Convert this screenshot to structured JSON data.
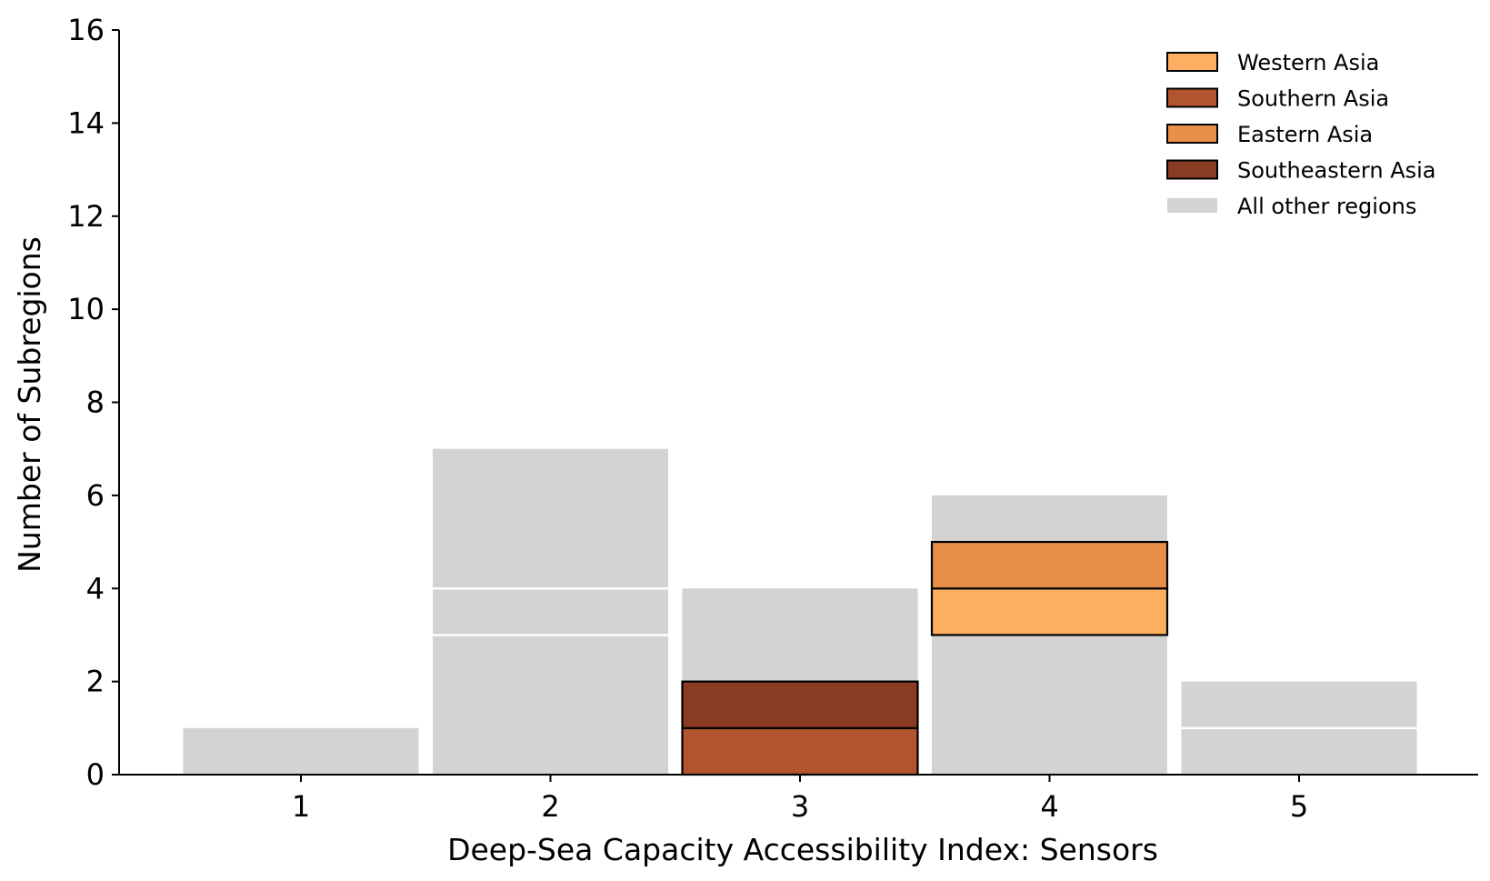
{
  "chart_data": {
    "type": "bar",
    "stacked": true,
    "xlabel": "Deep-Sea Capacity Accessibility Index: Sensors",
    "ylabel": "Number of Subregions",
    "categories": [
      "1",
      "2",
      "3",
      "4",
      "5"
    ],
    "ylim": [
      0,
      16
    ],
    "yticks": [
      0,
      2,
      4,
      6,
      8,
      10,
      12,
      14,
      16
    ],
    "grid": false,
    "legend_position": "top-right",
    "other_regions": {
      "name": "All other regions",
      "color": "#d3d3d3",
      "totals": [
        1,
        7,
        4,
        6,
        2
      ],
      "divider_lines": [
        [],
        [
          3,
          4
        ],
        [],
        [],
        [
          1
        ]
      ]
    },
    "series": [
      {
        "name": "Western Asia",
        "color": "#fdae61",
        "values": [
          0,
          0,
          0,
          1,
          0
        ],
        "start": [
          0,
          0,
          0,
          3,
          0
        ]
      },
      {
        "name": "Southern Asia",
        "color": "#b15530",
        "values": [
          0,
          0,
          1,
          0,
          0
        ],
        "start": [
          0,
          0,
          0,
          0,
          0
        ]
      },
      {
        "name": "Eastern Asia",
        "color": "#e8904a",
        "values": [
          0,
          0,
          0,
          1,
          0
        ],
        "start": [
          0,
          0,
          0,
          4,
          0
        ]
      },
      {
        "name": "Southeastern Asia",
        "color": "#8a3c22",
        "values": [
          0,
          0,
          1,
          0,
          0
        ],
        "start": [
          0,
          0,
          1,
          0,
          0
        ]
      }
    ]
  }
}
